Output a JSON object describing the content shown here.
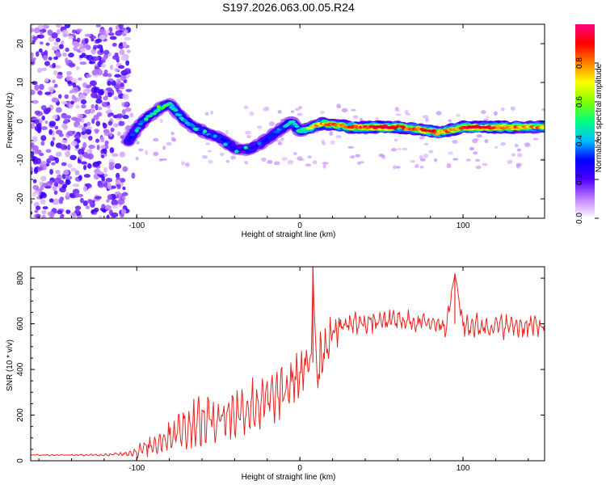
{
  "title": "S197.2026.063.00.05.R24",
  "colors": {
    "snr_line": "#e8231f",
    "axis": "#000000",
    "ridge_core": "#cc0022",
    "noise": "#a66cf0"
  },
  "chart_data": [
    {
      "type": "heatmap",
      "name": "spectrogram",
      "xlabel": "Height of straight line (km)",
      "ylabel": "Frequency (Hz)",
      "xlim": [
        -165,
        150
      ],
      "ylim": [
        -25,
        25
      ],
      "xticks": [
        -100,
        0,
        100
      ],
      "yticks": [
        -20,
        -10,
        0,
        10,
        20
      ],
      "colorbar": {
        "label": "Normalized spectral amplitude",
        "range": [
          0,
          1
        ],
        "ticks": [
          "0.0",
          "0.2",
          "0.4",
          "0.6",
          "0.8"
        ],
        "colors": [
          "#ffffff",
          "#c080ff",
          "#5000ff",
          "#0000ff",
          "#00c0ff",
          "#00ff80",
          "#80ff00",
          "#ffff00",
          "#ff8000",
          "#ff0000",
          "#ff0080"
        ]
      },
      "ridge": {
        "x": [
          -105,
          -100,
          -95,
          -90,
          -85,
          -80,
          -75,
          -70,
          -65,
          -60,
          -55,
          -50,
          -45,
          -40,
          -35,
          -30,
          -25,
          -20,
          -15,
          -10,
          -5,
          0,
          5,
          10,
          15,
          20,
          25,
          30,
          40,
          50,
          60,
          70,
          80,
          85,
          90,
          95,
          100,
          110,
          120,
          130,
          140,
          150
        ],
        "frequency_hz": [
          -5,
          -2,
          0.5,
          2,
          3.5,
          4.5,
          2,
          0,
          -1.5,
          -2.5,
          -3.5,
          -4,
          -5.5,
          -7,
          -7.5,
          -7,
          -6,
          -4.5,
          -3,
          -1.5,
          0,
          -2.5,
          -2,
          -1,
          -0.5,
          -1,
          -1,
          -1.5,
          -1.5,
          -1.5,
          -1.5,
          -2,
          -2.5,
          -3,
          -2.5,
          -2,
          -1.5,
          -1.5,
          -1.5,
          -1.5,
          -1.5,
          -1.5
        ],
        "amplitude": [
          0.3,
          0.35,
          0.4,
          0.45,
          0.5,
          0.5,
          0.45,
          0.4,
          0.4,
          0.35,
          0.35,
          0.3,
          0.35,
          0.3,
          0.3,
          0.3,
          0.3,
          0.3,
          0.35,
          0.35,
          0.5,
          0.5,
          0.65,
          0.75,
          0.8,
          0.8,
          0.8,
          0.85,
          0.9,
          0.95,
          0.9,
          0.85,
          0.9,
          0.85,
          0.8,
          0.85,
          0.9,
          0.95,
          0.9,
          0.85,
          0.8,
          0.8
        ]
      },
      "noise_region": {
        "x_from": -165,
        "x_to": -105,
        "amplitude": 0.15
      }
    },
    {
      "type": "line",
      "name": "snr",
      "xlabel": "Height of straight line (km)",
      "ylabel": "SNR (10 * v/v)",
      "xlim": [
        -165,
        150
      ],
      "ylim": [
        0,
        850
      ],
      "xticks": [
        -100,
        0,
        100
      ],
      "yticks": [
        0,
        200,
        400,
        600,
        800
      ],
      "series": [
        {
          "name": "SNR",
          "x": [
            -165,
            -140,
            -120,
            -110,
            -100,
            -90,
            -80,
            -70,
            -60,
            -50,
            -40,
            -30,
            -20,
            -10,
            -5,
            0,
            5,
            7,
            8,
            10,
            12,
            15,
            20,
            25,
            30,
            40,
            50,
            60,
            70,
            80,
            90,
            95,
            100,
            110,
            120,
            130,
            140,
            150
          ],
          "y": [
            25,
            25,
            25,
            30,
            40,
            70,
            110,
            150,
            175,
            190,
            210,
            240,
            260,
            300,
            340,
            380,
            410,
            430,
            850,
            420,
            440,
            500,
            560,
            590,
            600,
            605,
            610,
            615,
            610,
            605,
            600,
            820,
            595,
            590,
            590,
            590,
            590,
            590
          ],
          "envelope": [
            3,
            3,
            6,
            10,
            30,
            50,
            80,
            110,
            140,
            140,
            130,
            140,
            130,
            120,
            120,
            120,
            110,
            100,
            0,
            150,
            200,
            150,
            100,
            80,
            70,
            60,
            60,
            60,
            60,
            60,
            60,
            0,
            60,
            60,
            60,
            60,
            60,
            60
          ]
        }
      ]
    }
  ]
}
